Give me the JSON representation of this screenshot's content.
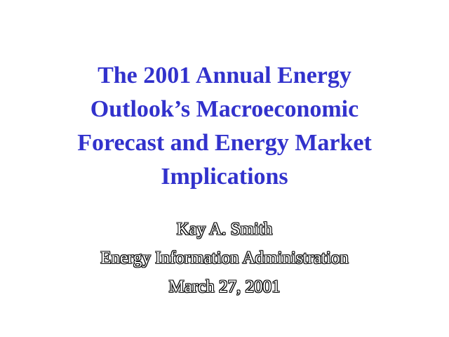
{
  "slide": {
    "title_lines": [
      "The 2001 Annual Energy",
      "Outlook’s Macroeconomic",
      "Forecast and Energy Market",
      "Implications"
    ],
    "author": "Kay A. Smith",
    "organization": "Energy Information Administration",
    "date": "March 27, 2001"
  },
  "colors": {
    "title": "#3232cc",
    "background": "#ffffff",
    "subtitle_fill": "#ffffff",
    "subtitle_outline": "#000000"
  }
}
